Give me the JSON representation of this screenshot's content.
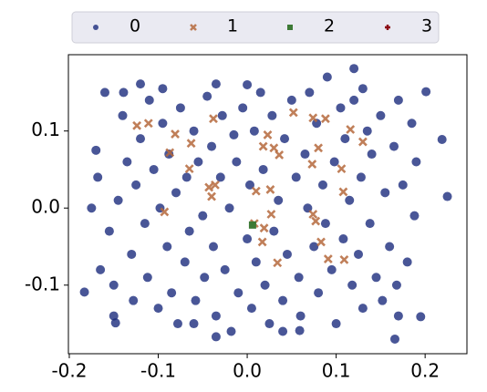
{
  "chart_data": {
    "type": "scatter",
    "xlim": [
      -0.201,
      0.247
    ],
    "ylim": [
      -0.189,
      0.199
    ],
    "xticks": [
      -0.2,
      -0.1,
      {
        "value": 0,
        "label": "0.0"
      },
      0.1,
      0.2
    ],
    "yticks": [
      -0.1,
      {
        "value": 0,
        "label": "0.0"
      },
      0.1
    ],
    "legend": "top",
    "series": [
      {
        "name": "0",
        "color": "#16267a",
        "marker": "circle",
        "x": [
          -0.183,
          0.225,
          0.219,
          0.12,
          -0.12,
          -0.139,
          -0.035,
          0.201,
          0.195,
          -0.148,
          -0.035,
          0.059,
          0.166,
          -0.17,
          -0.168,
          -0.155,
          -0.165,
          -0.15,
          -0.145,
          -0.14,
          -0.135,
          -0.13,
          -0.128,
          -0.125,
          -0.12,
          -0.115,
          -0.112,
          -0.11,
          -0.105,
          -0.1,
          -0.098,
          -0.095,
          -0.09,
          -0.088,
          -0.085,
          -0.08,
          -0.078,
          -0.075,
          -0.07,
          -0.068,
          -0.065,
          -0.06,
          -0.058,
          -0.055,
          -0.05,
          -0.048,
          -0.045,
          -0.04,
          -0.038,
          -0.035,
          -0.03,
          -0.028,
          -0.025,
          -0.02,
          -0.018,
          -0.015,
          -0.012,
          -0.01,
          -0.005,
          0.0,
          0.003,
          0.005,
          0.008,
          0.01,
          0.015,
          0.018,
          0.02,
          0.025,
          0.028,
          0.03,
          0.035,
          0.04,
          0.042,
          0.045,
          0.05,
          0.055,
          0.058,
          0.06,
          0.065,
          0.068,
          0.07,
          0.075,
          0.078,
          0.08,
          0.085,
          0.088,
          0.09,
          0.095,
          0.098,
          0.1,
          0.105,
          0.108,
          0.11,
          0.115,
          0.118,
          0.12,
          0.125,
          0.128,
          0.13,
          0.135,
          0.138,
          0.14,
          0.145,
          0.15,
          0.152,
          0.155,
          0.16,
          0.165,
          0.168,
          0.17,
          0.175,
          0.18,
          0.185,
          0.188,
          0.19,
          -0.16,
          -0.175,
          -0.15,
          -0.095,
          0.0,
          0.13,
          0.17,
          -0.06,
          0.04
        ],
        "y": [
          -0.109,
          0.015,
          0.089,
          0.181,
          0.161,
          0.15,
          0.161,
          0.151,
          -0.141,
          -0.149,
          -0.167,
          -0.159,
          -0.17,
          0.075,
          0.04,
          -0.03,
          -0.08,
          -0.1,
          0.01,
          0.12,
          0.06,
          -0.06,
          -0.12,
          0.03,
          0.09,
          -0.02,
          -0.09,
          0.14,
          0.05,
          -0.13,
          0.0,
          0.11,
          -0.05,
          0.07,
          -0.11,
          0.02,
          -0.15,
          0.13,
          -0.07,
          0.04,
          -0.03,
          0.1,
          -0.12,
          0.06,
          -0.01,
          -0.09,
          0.145,
          0.08,
          -0.05,
          -0.14,
          0.04,
          0.12,
          -0.08,
          0.0,
          -0.16,
          0.095,
          0.06,
          -0.11,
          0.13,
          -0.04,
          0.03,
          -0.13,
          0.1,
          -0.07,
          0.15,
          0.05,
          -0.1,
          -0.15,
          0.12,
          -0.03,
          0.01,
          -0.12,
          0.09,
          -0.06,
          0.14,
          0.04,
          -0.09,
          -0.14,
          0.07,
          0.0,
          0.15,
          -0.05,
          0.11,
          -0.11,
          0.03,
          -0.02,
          0.17,
          -0.08,
          0.06,
          -0.15,
          0.13,
          -0.04,
          0.09,
          0.01,
          -0.1,
          0.14,
          -0.06,
          0.04,
          -0.13,
          0.1,
          -0.02,
          0.07,
          -0.09,
          0.12,
          -0.12,
          0.02,
          -0.05,
          0.08,
          -0.1,
          0.14,
          0.03,
          -0.07,
          0.11,
          -0.01,
          0.06,
          0.15,
          0.0,
          -0.14,
          0.155,
          0.16,
          0.155,
          -0.14,
          -0.15,
          -0.16
        ]
      },
      {
        "name": "1",
        "color": "#b5693c",
        "marker": "x",
        "x": [
          -0.124,
          -0.111,
          -0.038,
          -0.081,
          -0.063,
          -0.087,
          -0.065,
          -0.043,
          -0.036,
          -0.04,
          -0.093,
          0.018,
          0.023,
          0.03,
          0.036,
          0.052,
          0.074,
          0.088,
          0.116,
          0.13,
          0.08,
          0.106,
          0.073,
          0.108,
          0.026,
          0.01,
          0.027,
          0.019,
          0.017,
          0.008,
          0.034,
          0.074,
          0.077,
          0.083,
          0.091,
          0.109
        ],
        "y": [
          0.107,
          0.11,
          0.116,
          0.096,
          0.084,
          0.072,
          0.051,
          0.027,
          0.03,
          0.015,
          -0.005,
          0.08,
          0.095,
          0.078,
          0.069,
          0.124,
          0.117,
          0.116,
          0.102,
          0.086,
          0.078,
          0.051,
          0.057,
          0.021,
          0.024,
          0.022,
          -0.008,
          -0.026,
          -0.044,
          -0.02,
          -0.071,
          -0.008,
          -0.017,
          -0.044,
          -0.066,
          -0.067
        ]
      },
      {
        "name": "2",
        "color": "#3d7a36",
        "marker": "square",
        "x": [
          0.006
        ],
        "y": [
          -0.022
        ]
      },
      {
        "name": "3",
        "color": "#8c0a14",
        "marker": "plus",
        "x": [],
        "y": []
      }
    ]
  }
}
